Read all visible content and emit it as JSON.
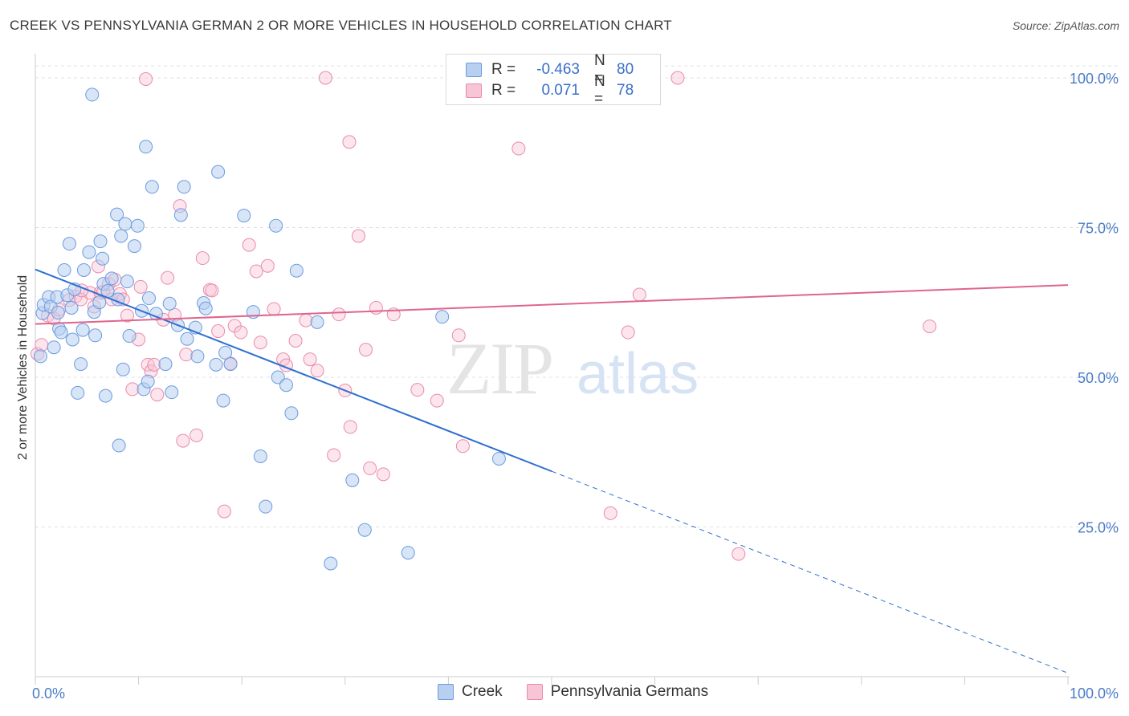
{
  "title": "CREEK VS PENNSYLVANIA GERMAN 2 OR MORE VEHICLES IN HOUSEHOLD CORRELATION CHART",
  "source": "Source: ZipAtlas.com",
  "watermark": {
    "zip": "ZIP",
    "atlas": "atlas"
  },
  "legend": {
    "r_label": "R =",
    "n_label": "N =",
    "series": [
      {
        "name": "Creek",
        "r": "-0.463",
        "n": "80",
        "fill": "#b8d0f0",
        "stroke": "#6b9be0"
      },
      {
        "name": "Pennsylvania Germans",
        "r": "0.071",
        "n": "78",
        "fill": "#f8c5d6",
        "stroke": "#e98bab"
      }
    ]
  },
  "chart_data": {
    "type": "scatter",
    "title": "CREEK VS PENNSYLVANIA GERMAN 2 OR MORE VEHICLES IN HOUSEHOLD CORRELATION CHART",
    "xlabel": "",
    "ylabel": "2 or more Vehicles in Household",
    "xlim": [
      0,
      100
    ],
    "ylim": [
      0,
      102
    ],
    "x_ticks": [
      "0.0%",
      "100.0%"
    ],
    "y_ticks": [
      {
        "value": 100,
        "label": "100.0%"
      },
      {
        "value": 75,
        "label": "75.0%"
      },
      {
        "value": 50,
        "label": "50.0%"
      },
      {
        "value": 25,
        "label": "25.0%"
      }
    ],
    "grid": true,
    "colors": {
      "creek": "#6b9be0",
      "creek_line": "#2f6fce",
      "penn": "#e98bab",
      "penn_line": "#e0648e",
      "grid": "#e0e0e0",
      "tick_text": "#4a7cc7"
    },
    "series": [
      {
        "name": "Creek",
        "points": [
          [
            0.5,
            53.5
          ],
          [
            0.7,
            60.7
          ],
          [
            0.8,
            62.1
          ],
          [
            1.3,
            63.4
          ],
          [
            1.5,
            61.8
          ],
          [
            1.8,
            55.0
          ],
          [
            2.1,
            63.4
          ],
          [
            2.3,
            58.1
          ],
          [
            2.5,
            57.5
          ],
          [
            2.8,
            67.9
          ],
          [
            3.1,
            63.7
          ],
          [
            3.3,
            72.3
          ],
          [
            3.5,
            61.6
          ],
          [
            3.8,
            64.7
          ],
          [
            4.1,
            47.4
          ],
          [
            4.4,
            52.2
          ],
          [
            4.6,
            57.9
          ],
          [
            4.7,
            67.9
          ],
          [
            5.2,
            70.9
          ],
          [
            5.5,
            97.2
          ],
          [
            5.7,
            60.9
          ],
          [
            5.8,
            57.0
          ],
          [
            6.3,
            72.7
          ],
          [
            6.5,
            69.8
          ],
          [
            6.6,
            65.6
          ],
          [
            6.8,
            46.9
          ],
          [
            7.0,
            64.4
          ],
          [
            7.4,
            66.5
          ],
          [
            7.9,
            77.2
          ],
          [
            8.1,
            38.6
          ],
          [
            8.3,
            73.6
          ],
          [
            8.5,
            51.3
          ],
          [
            8.7,
            75.6
          ],
          [
            8.9,
            66.0
          ],
          [
            9.1,
            56.9
          ],
          [
            9.6,
            71.9
          ],
          [
            9.9,
            75.3
          ],
          [
            10.3,
            61.1
          ],
          [
            10.5,
            48.0
          ],
          [
            10.7,
            88.5
          ],
          [
            10.9,
            49.3
          ],
          [
            11.3,
            81.8
          ],
          [
            11.7,
            60.6
          ],
          [
            12.6,
            52.2
          ],
          [
            13.0,
            62.3
          ],
          [
            13.2,
            47.5
          ],
          [
            13.8,
            58.7
          ],
          [
            14.1,
            77.1
          ],
          [
            14.4,
            81.8
          ],
          [
            14.7,
            56.4
          ],
          [
            15.5,
            58.3
          ],
          [
            15.7,
            53.5
          ],
          [
            16.3,
            62.4
          ],
          [
            16.5,
            61.5
          ],
          [
            17.5,
            52.1
          ],
          [
            17.7,
            84.3
          ],
          [
            18.2,
            46.1
          ],
          [
            18.4,
            54.1
          ],
          [
            18.9,
            52.2
          ],
          [
            20.2,
            77.0
          ],
          [
            21.1,
            60.9
          ],
          [
            21.8,
            36.8
          ],
          [
            22.3,
            28.4
          ],
          [
            23.3,
            75.3
          ],
          [
            23.5,
            50.0
          ],
          [
            24.3,
            48.7
          ],
          [
            24.8,
            44.0
          ],
          [
            25.3,
            67.8
          ],
          [
            27.3,
            59.2
          ],
          [
            28.6,
            18.9
          ],
          [
            30.7,
            32.8
          ],
          [
            31.9,
            24.5
          ],
          [
            36.1,
            20.7
          ],
          [
            39.4,
            60.1
          ],
          [
            44.9,
            36.4
          ],
          [
            2.2,
            60.8
          ],
          [
            6.2,
            62.5
          ],
          [
            11.0,
            63.2
          ],
          [
            8.0,
            63.0
          ],
          [
            3.6,
            56.3
          ]
        ]
      },
      {
        "name": "Pennsylvania Germans",
        "points": [
          [
            0.2,
            53.9
          ],
          [
            0.6,
            55.4
          ],
          [
            1.2,
            60.3
          ],
          [
            1.8,
            59.8
          ],
          [
            2.3,
            61.3
          ],
          [
            3.3,
            62.9
          ],
          [
            3.9,
            63.5
          ],
          [
            4.4,
            63.0
          ],
          [
            5.3,
            64.1
          ],
          [
            5.7,
            61.8
          ],
          [
            6.1,
            68.5
          ],
          [
            6.3,
            64.1
          ],
          [
            6.6,
            64.3
          ],
          [
            7.1,
            65.6
          ],
          [
            7.4,
            63.0
          ],
          [
            7.7,
            66.3
          ],
          [
            8.2,
            63.9
          ],
          [
            8.5,
            63.0
          ],
          [
            8.9,
            60.3
          ],
          [
            9.4,
            48.0
          ],
          [
            10.0,
            56.3
          ],
          [
            10.2,
            65.1
          ],
          [
            10.9,
            52.1
          ],
          [
            11.2,
            51.0
          ],
          [
            11.5,
            52.1
          ],
          [
            11.8,
            47.1
          ],
          [
            12.4,
            59.6
          ],
          [
            12.8,
            66.6
          ],
          [
            13.5,
            60.4
          ],
          [
            14.0,
            78.6
          ],
          [
            14.3,
            39.4
          ],
          [
            14.6,
            53.8
          ],
          [
            15.6,
            40.3
          ],
          [
            16.2,
            69.9
          ],
          [
            16.9,
            64.6
          ],
          [
            17.1,
            64.5
          ],
          [
            17.7,
            57.7
          ],
          [
            18.3,
            27.6
          ],
          [
            18.9,
            52.3
          ],
          [
            19.3,
            58.6
          ],
          [
            19.9,
            57.5
          ],
          [
            20.7,
            72.1
          ],
          [
            21.4,
            67.7
          ],
          [
            21.8,
            55.8
          ],
          [
            22.5,
            68.6
          ],
          [
            23.1,
            61.4
          ],
          [
            24.0,
            53.0
          ],
          [
            24.3,
            52.0
          ],
          [
            25.2,
            56.1
          ],
          [
            26.2,
            59.5
          ],
          [
            26.6,
            53.0
          ],
          [
            27.3,
            51.1
          ],
          [
            28.1,
            100.0
          ],
          [
            28.9,
            37.0
          ],
          [
            29.4,
            60.5
          ],
          [
            30.0,
            47.8
          ],
          [
            30.4,
            89.3
          ],
          [
            30.5,
            41.7
          ],
          [
            31.3,
            73.6
          ],
          [
            32.0,
            54.6
          ],
          [
            32.4,
            34.8
          ],
          [
            33.0,
            61.6
          ],
          [
            33.7,
            33.8
          ],
          [
            34.7,
            60.5
          ],
          [
            37.0,
            47.9
          ],
          [
            38.9,
            46.1
          ],
          [
            41.0,
            57.0
          ],
          [
            41.4,
            38.5
          ],
          [
            46.8,
            88.2
          ],
          [
            48.4,
            100.0
          ],
          [
            55.7,
            27.3
          ],
          [
            57.4,
            57.5
          ],
          [
            58.5,
            63.8
          ],
          [
            62.2,
            100.0
          ],
          [
            68.1,
            20.5
          ],
          [
            86.6,
            58.5
          ],
          [
            10.7,
            99.8
          ],
          [
            4.5,
            64.5
          ]
        ]
      }
    ],
    "trendlines": [
      {
        "series": "Creek",
        "x": [
          0,
          50
        ],
        "y": [
          68.0,
          34.3
        ],
        "extended_x": [
          50,
          100
        ],
        "extended_y": [
          34.3,
          0.6
        ],
        "extended_style": "dashed"
      },
      {
        "series": "Pennsylvania Germans",
        "x": [
          0,
          100
        ],
        "y": [
          58.9,
          65.4
        ]
      }
    ]
  }
}
